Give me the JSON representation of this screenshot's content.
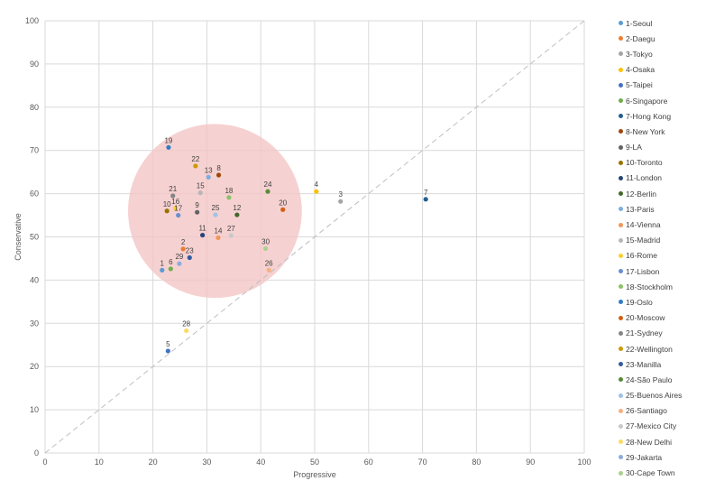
{
  "chart_data": {
    "type": "scatter",
    "title": "",
    "xlabel": "Progressive",
    "ylabel": "Conservative",
    "xlim": [
      0,
      100
    ],
    "ylim": [
      0,
      100
    ],
    "x_ticks": [
      "0",
      "10",
      "20",
      "30",
      "40",
      "50",
      "60",
      "70",
      "80",
      "90",
      "100"
    ],
    "y_ticks": [
      "0",
      "10",
      "20",
      "30",
      "40",
      "50",
      "60",
      "70",
      "80",
      "90",
      "100"
    ],
    "grid": true,
    "legend_position": "right",
    "reference_line": {
      "from": [
        0,
        0
      ],
      "to": [
        100,
        100
      ],
      "style": "dashed"
    },
    "highlight_circle": {
      "center": [
        31.5,
        56
      ],
      "radius": 15.8,
      "color": "#f4c6c6"
    },
    "points": [
      {
        "id": "1",
        "name": "1-Seoul",
        "x": 21.7,
        "y": 42.3,
        "color": "#5b9bd5"
      },
      {
        "id": "2",
        "name": "2-Daegu",
        "x": 25.6,
        "y": 47.2,
        "color": "#ed7d31"
      },
      {
        "id": "3",
        "name": "3-Tokyo",
        "x": 54.8,
        "y": 58.2,
        "color": "#a5a5a5"
      },
      {
        "id": "4",
        "name": "4-Osaka",
        "x": 50.3,
        "y": 60.5,
        "color": "#ffc000"
      },
      {
        "id": "5",
        "name": "5-Taipei",
        "x": 22.8,
        "y": 23.6,
        "color": "#4472c4"
      },
      {
        "id": "6",
        "name": "6-Singapore",
        "x": 23.3,
        "y": 42.6,
        "color": "#70ad47"
      },
      {
        "id": "7",
        "name": "7-Hong Kong",
        "x": 70.6,
        "y": 58.7,
        "color": "#255e91"
      },
      {
        "id": "8",
        "name": "8-New York",
        "x": 32.2,
        "y": 64.3,
        "color": "#9e480e"
      },
      {
        "id": "9",
        "name": "9-LA",
        "x": 28.2,
        "y": 55.7,
        "color": "#636363"
      },
      {
        "id": "10",
        "name": "10-Toronto",
        "x": 22.6,
        "y": 56.0,
        "color": "#997300"
      },
      {
        "id": "11",
        "name": "11-London",
        "x": 29.2,
        "y": 50.4,
        "color": "#264478"
      },
      {
        "id": "12",
        "name": "12-Berlin",
        "x": 35.6,
        "y": 55.1,
        "color": "#43682b"
      },
      {
        "id": "13",
        "name": "13-Paris",
        "x": 30.3,
        "y": 63.8,
        "color": "#7cafdd"
      },
      {
        "id": "14",
        "name": "14-Vienna",
        "x": 32.1,
        "y": 49.8,
        "color": "#f1975a"
      },
      {
        "id": "15",
        "name": "15-Madrid",
        "x": 28.8,
        "y": 60.2,
        "color": "#b7b7b7"
      },
      {
        "id": "16",
        "name": "16-Rome",
        "x": 24.2,
        "y": 56.6,
        "color": "#ffcd33"
      },
      {
        "id": "17",
        "name": "17-Lisbon",
        "x": 24.7,
        "y": 55.0,
        "color": "#698ed0"
      },
      {
        "id": "18",
        "name": "18-Stockholm",
        "x": 34.1,
        "y": 59.1,
        "color": "#8cc168"
      },
      {
        "id": "19",
        "name": "19-Oslo",
        "x": 22.9,
        "y": 70.7,
        "color": "#327dc2"
      },
      {
        "id": "20",
        "name": "20-Moscow",
        "x": 44.1,
        "y": 56.3,
        "color": "#d26012"
      },
      {
        "id": "21",
        "name": "21-Sydney",
        "x": 23.7,
        "y": 59.5,
        "color": "#848484"
      },
      {
        "id": "22",
        "name": "22-Wellington",
        "x": 27.9,
        "y": 66.4,
        "color": "#cc9a00"
      },
      {
        "id": "23",
        "name": "23-Manilla",
        "x": 26.8,
        "y": 45.2,
        "color": "#335aa1"
      },
      {
        "id": "24",
        "name": "24-São Paulo",
        "x": 41.3,
        "y": 60.5,
        "color": "#5a8a39"
      },
      {
        "id": "25",
        "name": "25-Buenos Aires",
        "x": 31.6,
        "y": 55.1,
        "color": "#9dc3e6"
      },
      {
        "id": "26",
        "name": "26-Santiago",
        "x": 41.5,
        "y": 42.3,
        "color": "#f4b183"
      },
      {
        "id": "27",
        "name": "27-Mexico City",
        "x": 34.5,
        "y": 50.3,
        "color": "#c9c9c9"
      },
      {
        "id": "28",
        "name": "28-New Delhi",
        "x": 26.2,
        "y": 28.3,
        "color": "#ffd966"
      },
      {
        "id": "29",
        "name": "29-Jakarta",
        "x": 24.9,
        "y": 43.8,
        "color": "#8faadc"
      },
      {
        "id": "30",
        "name": "30-Cape Town",
        "x": 40.9,
        "y": 47.3,
        "color": "#a9d18e"
      }
    ]
  }
}
